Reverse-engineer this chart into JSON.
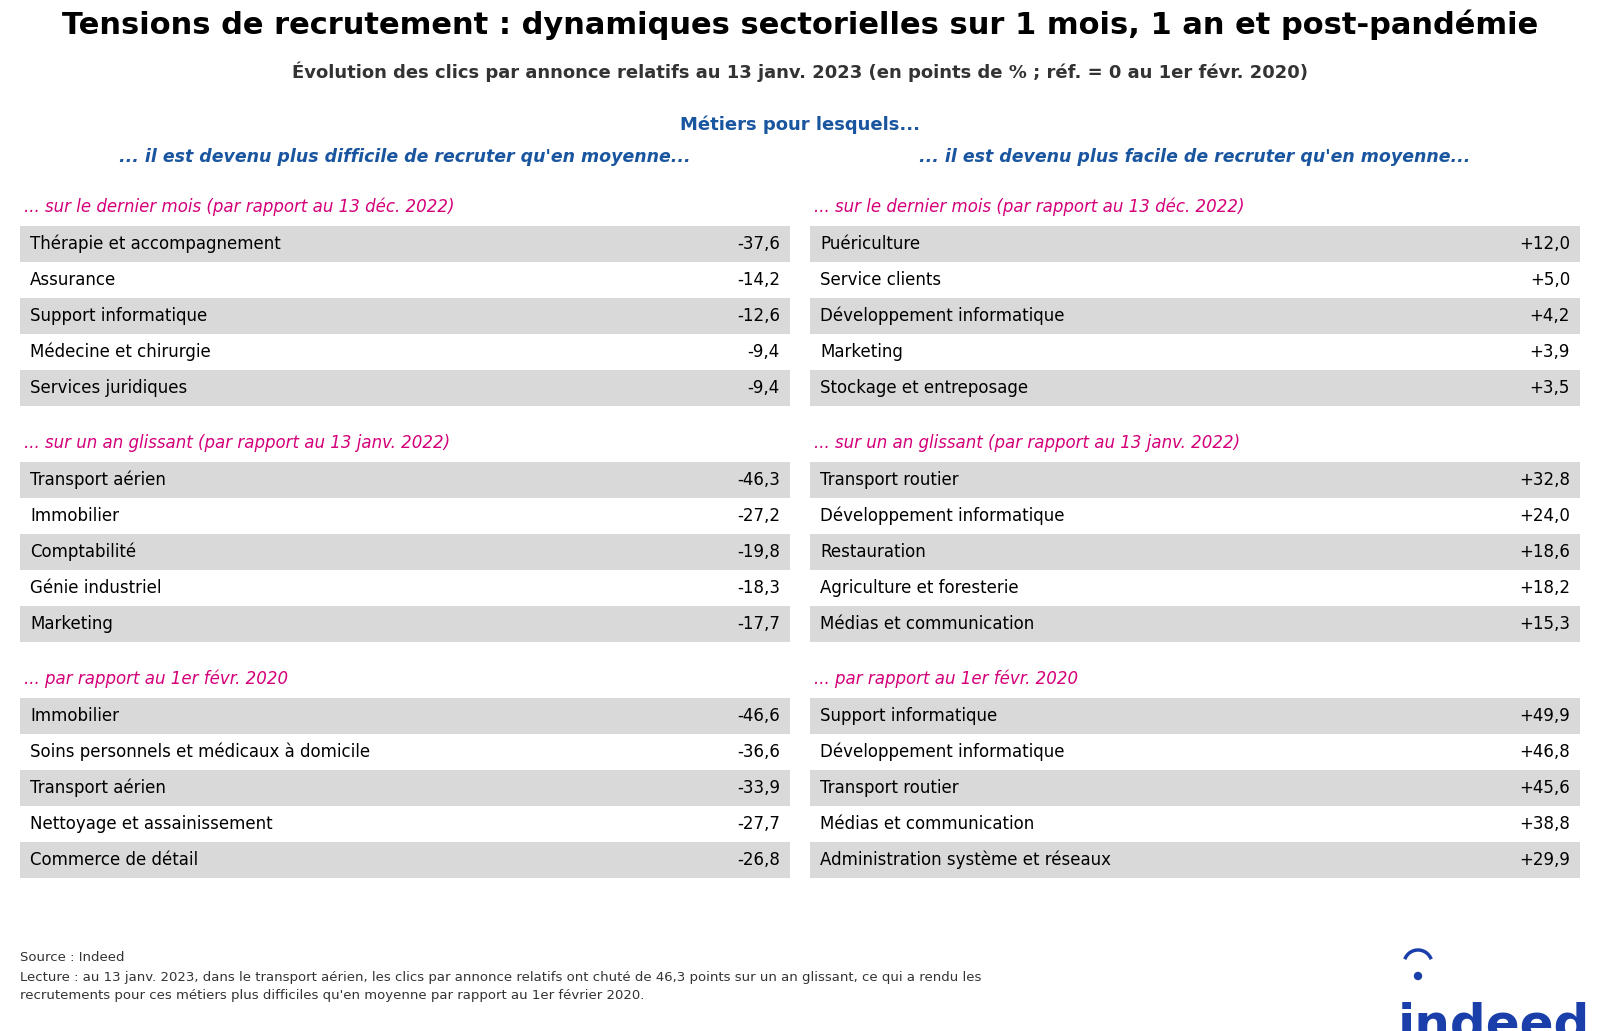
{
  "title": "Tensions de recrutement : dynamiques sectorielles sur 1 mois, 1 an et post-pandémie",
  "subtitle": "Évolution des clics par annonce relatifs au 13 janv. 2023 (en points de % ; réf. = 0 au 1er févr. 2020)",
  "center_header": "Métiers pour lesquels...",
  "left_header": "... il est devenu plus difficile de recruter qu'en moyenne...",
  "right_header": "... il est devenu plus facile de recruter qu'en moyenne...",
  "sections": [
    {
      "left_subtitle": "... sur le dernier mois (par rapport au 13 déc. 2022)",
      "right_subtitle": "... sur le dernier mois (par rapport au 13 déc. 2022)",
      "left_data": [
        [
          "Thérapie et accompagnement",
          "-37,6"
        ],
        [
          "Assurance",
          "-14,2"
        ],
        [
          "Support informatique",
          "-12,6"
        ],
        [
          "Médecine et chirurgie",
          "-9,4"
        ],
        [
          "Services juridiques",
          "-9,4"
        ]
      ],
      "right_data": [
        [
          "Puériculture",
          "+12,0"
        ],
        [
          "Service clients",
          "+5,0"
        ],
        [
          "Développement informatique",
          "+4,2"
        ],
        [
          "Marketing",
          "+3,9"
        ],
        [
          "Stockage et entreposage",
          "+3,5"
        ]
      ]
    },
    {
      "left_subtitle": "... sur un an glissant (par rapport au 13 janv. 2022)",
      "right_subtitle": "... sur un an glissant (par rapport au 13 janv. 2022)",
      "left_data": [
        [
          "Transport aérien",
          "-46,3"
        ],
        [
          "Immobilier",
          "-27,2"
        ],
        [
          "Comptabilité",
          "-19,8"
        ],
        [
          "Génie industriel",
          "-18,3"
        ],
        [
          "Marketing",
          "-17,7"
        ]
      ],
      "right_data": [
        [
          "Transport routier",
          "+32,8"
        ],
        [
          "Développement informatique",
          "+24,0"
        ],
        [
          "Restauration",
          "+18,6"
        ],
        [
          "Agriculture et foresterie",
          "+18,2"
        ],
        [
          "Médias et communication",
          "+15,3"
        ]
      ]
    },
    {
      "left_subtitle": "... par rapport au 1er févr. 2020",
      "right_subtitle": "... par rapport au 1er févr. 2020",
      "left_data": [
        [
          "Immobilier",
          "-46,6"
        ],
        [
          "Soins personnels et médicaux à domicile",
          "-36,6"
        ],
        [
          "Transport aérien",
          "-33,9"
        ],
        [
          "Nettoyage et assainissement",
          "-27,7"
        ],
        [
          "Commerce de détail",
          "-26,8"
        ]
      ],
      "right_data": [
        [
          "Support informatique",
          "+49,9"
        ],
        [
          "Développement informatique",
          "+46,8"
        ],
        [
          "Transport routier",
          "+45,6"
        ],
        [
          "Médias et communication",
          "+38,8"
        ],
        [
          "Administration système et réseaux",
          "+29,9"
        ]
      ]
    }
  ],
  "footer_source": "Source : Indeed",
  "footer_note": "Lecture : au 13 janv. 2023, dans le transport aérien, les clics par annonce relatifs ont chuté de 46,3 points sur un an glissant, ce qui a rendu les recrutements pour ces métiers plus difficiles qu'en moyenne par rapport au 1er février 2020.",
  "title_color": "#000000",
  "subtitle_color": "#333333",
  "center_header_color": "#1a56a0",
  "col_header_color": "#1a56a0",
  "section_subtitle_color": "#d4007a",
  "row_bg_gray": "#D9D9D9",
  "row_bg_white": "#FFFFFF",
  "bg_color": "#FFFFFF",
  "indeed_blue": "#1a3faa"
}
